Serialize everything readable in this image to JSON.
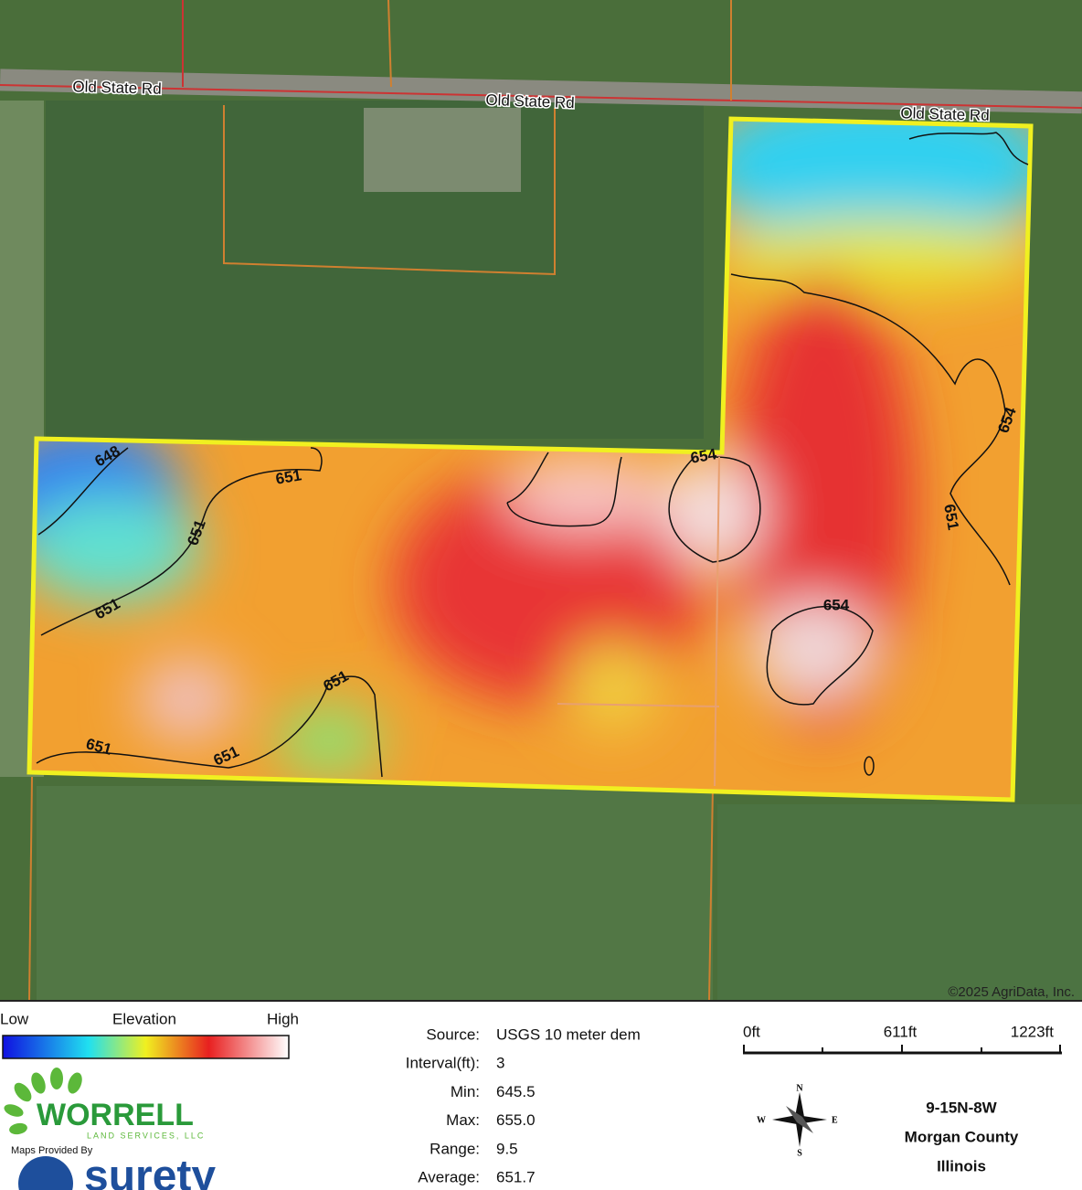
{
  "map": {
    "roads": [
      "Old State Rd",
      "Old State Rd",
      "Old State Rd"
    ],
    "contours": [
      "648",
      "651",
      "651",
      "651",
      "651",
      "651",
      "651",
      "654",
      "654",
      "654",
      "651"
    ],
    "copyright": "©2025 AgriData, Inc."
  },
  "legend": {
    "low": "Low",
    "title": "Elevation",
    "high": "High"
  },
  "stats": {
    "rows": [
      [
        "Source:",
        "USGS 10 meter dem"
      ],
      [
        "Interval(ft):",
        "3"
      ],
      [
        "Min:",
        "645.5"
      ],
      [
        "Max:",
        "655.0"
      ],
      [
        "Range:",
        "9.5"
      ],
      [
        "Average:",
        "651.7"
      ]
    ]
  },
  "scale": {
    "labels": [
      "0ft",
      "611ft",
      "1223ft"
    ]
  },
  "compass": {
    "n": "N",
    "s": "S",
    "e": "E",
    "w": "W"
  },
  "location": {
    "lines": [
      "9-15N-8W",
      "Morgan County",
      "Illinois"
    ]
  },
  "logo": {
    "name": "WORRELL",
    "sub": "LAND SERVICES, LLC",
    "provided": "Maps Provided By",
    "brand": "surety"
  }
}
